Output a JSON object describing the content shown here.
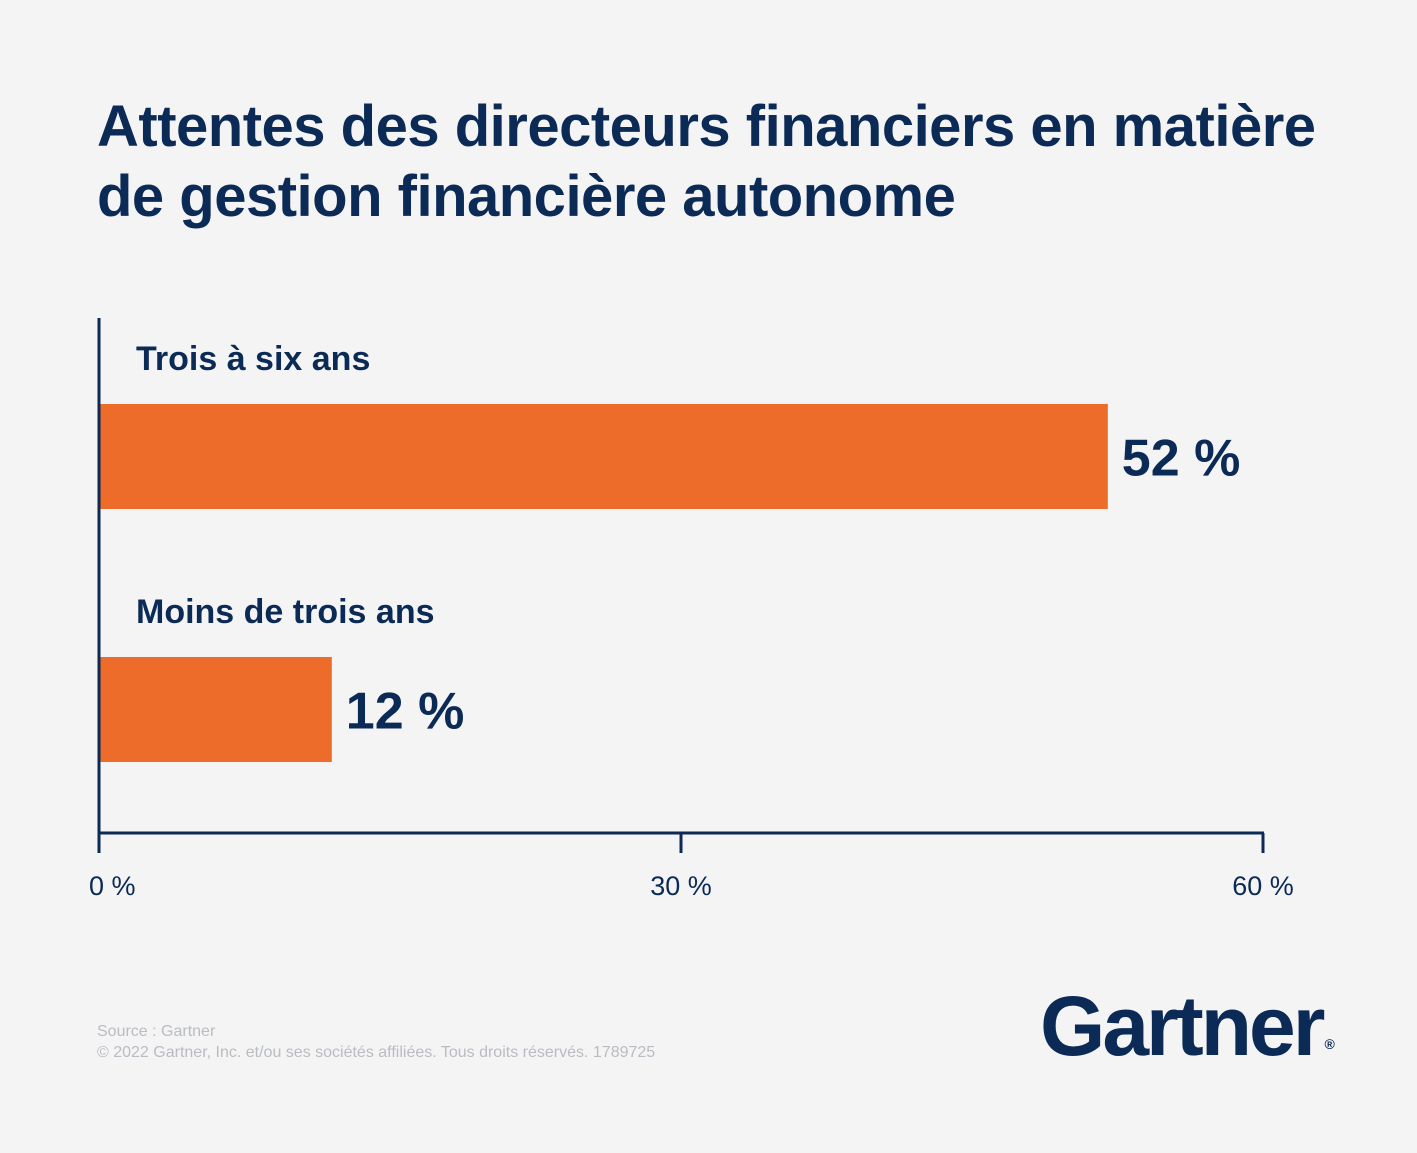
{
  "title": "Attentes des directeurs financiers en matière de gestion financière autonome",
  "footer": {
    "source": "Source : Gartner",
    "copyright": "© 2022 Gartner, Inc. et/ou ses sociétés affiliées. Tous droits réservés. 1789725"
  },
  "logo": {
    "text": "Gartner",
    "mark": "®"
  },
  "colors": {
    "bar": "#ee6c2a",
    "text": "#0b2a56",
    "background": "#f4f4f4"
  },
  "chart_data": {
    "type": "bar",
    "orientation": "horizontal",
    "categories": [
      "Trois à six ans",
      "Moins de trois ans"
    ],
    "values": [
      52,
      12
    ],
    "value_labels": [
      "52 %",
      "12 %"
    ],
    "xlim": [
      0,
      60
    ],
    "x_ticks": [
      0,
      30,
      60
    ],
    "x_tick_labels": [
      "0 %",
      "30 %",
      "60 %"
    ],
    "grid": false,
    "legend": "none"
  }
}
